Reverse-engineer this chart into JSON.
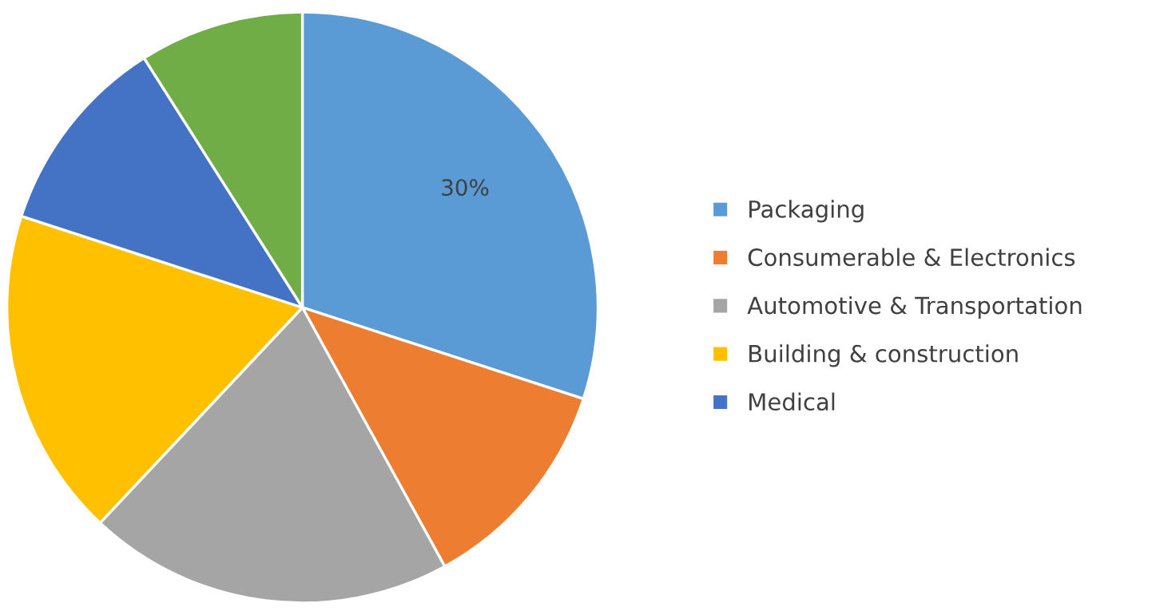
{
  "chart_data": {
    "type": "pie",
    "categories": [
      "Packaging",
      "Consumerable & Electronics",
      "Automotive & Transportation",
      "Building & construction",
      "Medical",
      null
    ],
    "values": [
      30,
      12,
      20,
      18,
      11,
      9
    ],
    "colors": [
      "#5b9bd5",
      "#ed7d31",
      "#a5a5a5",
      "#ffc000",
      "#4472c4",
      "#70ad47"
    ],
    "value_labels": [
      "30%",
      null,
      null,
      null,
      null,
      null
    ],
    "legend": "right"
  }
}
